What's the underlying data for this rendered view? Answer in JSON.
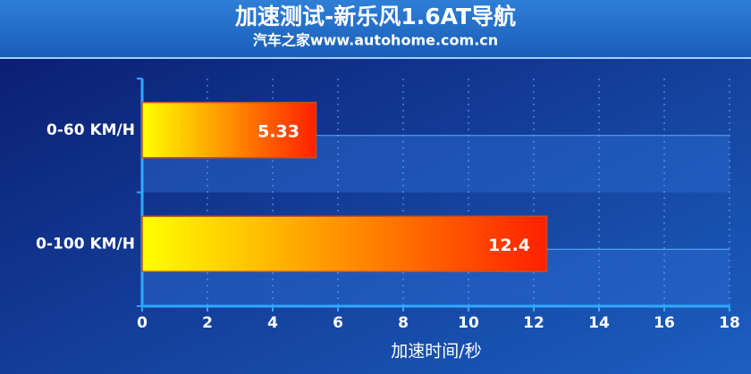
{
  "chart_data": {
    "type": "bar",
    "orientation": "horizontal",
    "title": "加速测试-新乐风1.6AT导航",
    "subtitle": "汽车之家www.autohome.com.cn",
    "x_label": "加速时间/秒",
    "categories": [
      "0-60 KM/H",
      "0-100 KM/H"
    ],
    "values": [
      5.33,
      12.4
    ],
    "colors": [
      "#ffff00",
      "#ff2000"
    ],
    "xlim": [
      0,
      18
    ],
    "xticks": [
      0,
      2,
      4,
      6,
      8,
      10,
      12,
      14,
      16,
      18
    ],
    "grid": true
  }
}
